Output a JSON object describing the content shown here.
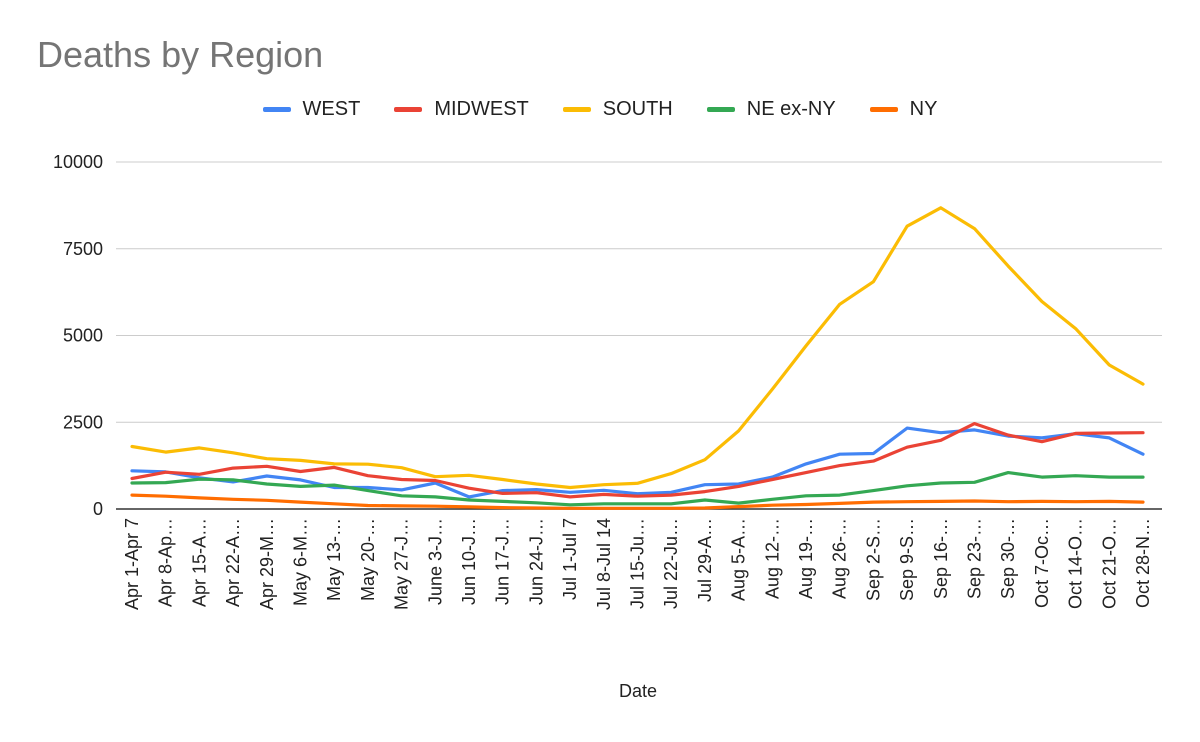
{
  "chart_data": {
    "type": "line",
    "title": "Deaths by Region",
    "xlabel": "Date",
    "ylabel": "",
    "ylim": [
      0,
      10000
    ],
    "yticks": [
      0,
      2500,
      5000,
      7500,
      10000
    ],
    "grid": true,
    "legend_position": "top",
    "categories": [
      "Apr 1-Apr 7",
      "Apr 8-Ap…",
      "Apr 15-A…",
      "Apr 22-A…",
      "Apr 29-M…",
      "May 6-M…",
      "May 13-…",
      "May 20-…",
      "May 27-J…",
      "June 3-J…",
      "Jun 10-J…",
      "Jun 17-J…",
      "Jun 24-J…",
      "Jul 1-Jul 7",
      "Jul 8-Jul 14",
      "Jul 15-Ju…",
      "Jul 22-Ju…",
      "Jul 29-A…",
      "Aug 5-A…",
      "Aug 12-…",
      "Aug 19-…",
      "Aug 26-…",
      "Sep 2-S…",
      "Sep 9-S…",
      "Sep 16-…",
      "Sep 23-…",
      "Sep 30-…",
      "Oct 7-Oc…",
      "Oct 14-O…",
      "Oct 21-O…",
      "Oct 28-N…"
    ],
    "series": [
      {
        "name": "WEST",
        "color": "#4285f4",
        "values": [
          1100,
          1070,
          900,
          780,
          950,
          840,
          620,
          620,
          550,
          750,
          350,
          530,
          560,
          480,
          540,
          440,
          480,
          700,
          720,
          920,
          1300,
          1580,
          1600,
          2330,
          2200,
          2280,
          2100,
          2050,
          2170,
          2050,
          1580
        ]
      },
      {
        "name": "MIDWEST",
        "color": "#ea4335",
        "values": [
          880,
          1060,
          1000,
          1180,
          1230,
          1080,
          1200,
          960,
          850,
          820,
          600,
          450,
          470,
          350,
          420,
          370,
          400,
          500,
          650,
          850,
          1050,
          1250,
          1380,
          1780,
          1980,
          2460,
          2130,
          1940,
          2180,
          2190,
          2200
        ]
      },
      {
        "name": "SOUTH",
        "color": "#fbbc04",
        "values": [
          1800,
          1640,
          1760,
          1620,
          1450,
          1400,
          1300,
          1290,
          1190,
          930,
          970,
          850,
          720,
          620,
          700,
          740,
          1020,
          1420,
          2250,
          3450,
          4700,
          5900,
          6550,
          8150,
          8680,
          8080,
          7000,
          5980,
          5200,
          4150,
          3600
        ]
      },
      {
        "name": "NE ex-NY",
        "color": "#34a853",
        "values": [
          750,
          760,
          860,
          840,
          720,
          650,
          690,
          530,
          380,
          350,
          260,
          220,
          180,
          120,
          150,
          150,
          150,
          260,
          170,
          280,
          380,
          400,
          530,
          670,
          750,
          770,
          1050,
          920,
          960,
          920,
          920
        ]
      },
      {
        "name": "NY",
        "color": "#ff6d01",
        "values": [
          400,
          370,
          320,
          280,
          250,
          200,
          150,
          100,
          90,
          80,
          60,
          40,
          30,
          20,
          20,
          20,
          20,
          30,
          70,
          110,
          130,
          160,
          200,
          210,
          220,
          230,
          210,
          220,
          210,
          220,
          200
        ]
      }
    ]
  }
}
